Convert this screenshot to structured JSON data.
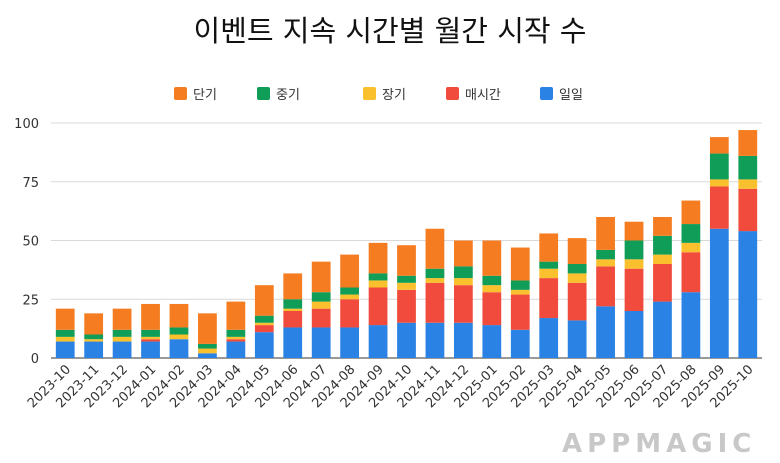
{
  "chart_data": {
    "type": "bar",
    "stacked": true,
    "title": "이벤트 지속 시간별 월간 시작 수",
    "xlabel": "",
    "ylabel": "",
    "ylim": [
      0,
      100
    ],
    "yticks": [
      0,
      25,
      50,
      75,
      100
    ],
    "grid": true,
    "legend_position": "top",
    "categories": [
      "2023-10",
      "2023-11",
      "2023-12",
      "2024-01",
      "2024-02",
      "2024-03",
      "2024-04",
      "2024-05",
      "2024-06",
      "2024-07",
      "2024-08",
      "2024-09",
      "2024-10",
      "2024-11",
      "2024-12",
      "2025-01",
      "2025-02",
      "2025-03",
      "2025-04",
      "2025-05",
      "2025-06",
      "2025-07",
      "2025-08",
      "2025-09",
      "2025-10"
    ],
    "legend_order": [
      "단기",
      "중기",
      "장기",
      "매시간",
      "일일"
    ],
    "series": [
      {
        "name": "일일",
        "color": "#2a82e4",
        "values": [
          7,
          7,
          7,
          7,
          8,
          2,
          7,
          11,
          13,
          13,
          13,
          14,
          15,
          15,
          15,
          14,
          12,
          17,
          16,
          22,
          20,
          24,
          28,
          55,
          54
        ]
      },
      {
        "name": "매시간",
        "color": "#f04b3c",
        "values": [
          0,
          0,
          0,
          1,
          0,
          0,
          1,
          3,
          7,
          8,
          12,
          16,
          14,
          17,
          16,
          14,
          15,
          17,
          16,
          17,
          18,
          16,
          17,
          18,
          18
        ]
      },
      {
        "name": "장기",
        "color": "#fbc02d",
        "values": [
          2,
          1,
          2,
          1,
          2,
          2,
          1,
          1,
          1,
          3,
          2,
          3,
          3,
          2,
          3,
          3,
          2,
          4,
          4,
          3,
          4,
          4,
          4,
          3,
          4
        ]
      },
      {
        "name": "중기",
        "color": "#0f9d58",
        "values": [
          3,
          2,
          3,
          3,
          3,
          2,
          3,
          3,
          4,
          4,
          3,
          3,
          3,
          4,
          5,
          4,
          4,
          3,
          4,
          4,
          8,
          8,
          8,
          11,
          10
        ]
      },
      {
        "name": "단기",
        "color": "#f57c20",
        "values": [
          9,
          9,
          9,
          11,
          10,
          13,
          12,
          13,
          11,
          13,
          14,
          13,
          13,
          17,
          11,
          15,
          14,
          12,
          11,
          14,
          8,
          8,
          10,
          7,
          11
        ]
      }
    ]
  },
  "watermark": {
    "text": "APPMAGIC"
  }
}
